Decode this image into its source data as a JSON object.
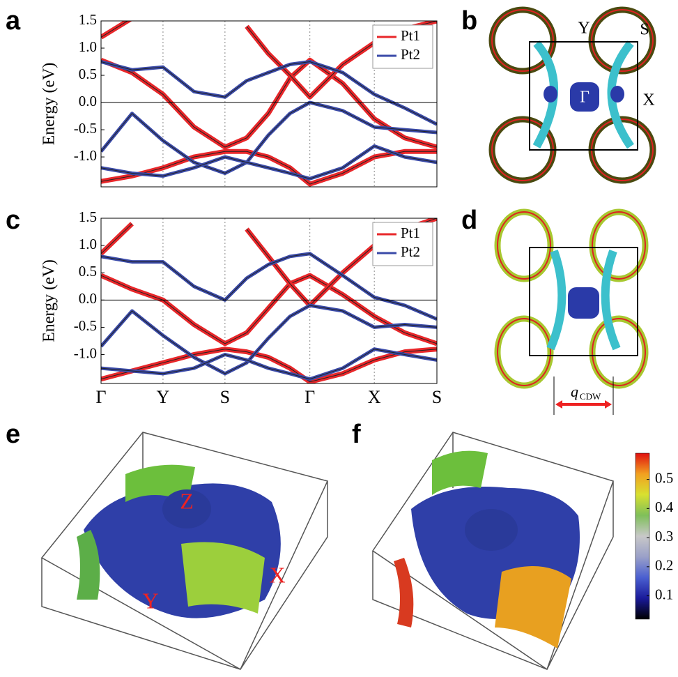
{
  "panel_labels": [
    "a",
    "b",
    "c",
    "d",
    "e",
    "f"
  ],
  "fermi_b": {
    "labels": [
      "Y",
      "S",
      "Γ",
      "X"
    ]
  },
  "fermi_d": {
    "symbol": "q",
    "subscript": "CDW"
  },
  "surface_e": {
    "labels": [
      "Z",
      "X",
      "Y"
    ]
  },
  "chart_data": [
    {
      "type": "line",
      "ylabel": "Energy (eV)",
      "legend": "upper right",
      "x": [
        0,
        0.5,
        1,
        1.5,
        2,
        2.35,
        2.7,
        3.05,
        3.37,
        3.9,
        4.41,
        4.9,
        5.42
      ],
      "xlim": [
        0,
        5.42
      ],
      "xticks": [
        {
          "value": 0,
          "label": null
        },
        {
          "value": 1,
          "label": null
        },
        {
          "value": 2,
          "label": null
        },
        {
          "value": 3.37,
          "label": null
        },
        {
          "value": 4.41,
          "label": null
        },
        {
          "value": 5.42,
          "label": null
        }
      ],
      "ylim": [
        -1.55,
        1.5
      ],
      "yticks": [
        {
          "value": -1,
          "label": "-1.0"
        },
        -0.5,
        {
          "value": 0,
          "label": "0.0"
        },
        0.5,
        {
          "value": 1,
          "label": "1.0"
        },
        1.5
      ],
      "series": [
        {
          "name": "Pt1",
          "color": "#e8272a",
          "values": [
            [
              0.78,
              0.55,
              0.15,
              -0.45,
              -0.82,
              -0.65,
              -0.2,
              0.45,
              0.78,
              0.35,
              -0.3,
              -0.65,
              -0.82
            ],
            [
              -1.45,
              -1.35,
              -1.2,
              -1.0,
              -0.9,
              -0.9,
              -1.0,
              -1.2,
              -1.5,
              -1.3,
              -1.0,
              -0.9,
              -0.9
            ],
            [
              1.2,
              1.55,
              null,
              null,
              null,
              1.4,
              0.9,
              0.5,
              0.1,
              0.7,
              1.1,
              1.35,
              1.5
            ]
          ]
        },
        {
          "name": "Pt2",
          "color": "#3a4aa8",
          "values": [
            [
              -0.9,
              -0.2,
              -0.7,
              -1.1,
              -1.3,
              -1.1,
              -0.6,
              -0.2,
              0.0,
              -0.15,
              -0.45,
              -0.5,
              -0.55
            ],
            [
              0.75,
              0.6,
              0.65,
              0.2,
              0.1,
              0.4,
              0.55,
              0.7,
              0.75,
              0.55,
              0.15,
              -0.1,
              -0.4
            ],
            [
              -1.2,
              -1.3,
              -1.35,
              -1.2,
              -1.0,
              -1.1,
              -1.2,
              -1.3,
              -1.4,
              -1.2,
              -0.8,
              -1.0,
              -1.1
            ]
          ]
        }
      ]
    },
    {
      "type": "line",
      "ylabel": "Energy (eV)",
      "legend": "upper right",
      "x": [
        0,
        0.5,
        1,
        1.5,
        2,
        2.35,
        2.7,
        3.05,
        3.37,
        3.9,
        4.41,
        4.9,
        5.42
      ],
      "xlim": [
        0,
        5.42
      ],
      "xticks": [
        {
          "value": 0,
          "label": "Γ"
        },
        {
          "value": 1,
          "label": "Y"
        },
        {
          "value": 2,
          "label": "S"
        },
        {
          "value": 3.37,
          "label": "Γ"
        },
        {
          "value": 4.41,
          "label": "X"
        },
        {
          "value": 5.42,
          "label": "S"
        }
      ],
      "ylim": [
        -1.53,
        1.5
      ],
      "yticks": [
        {
          "value": -1,
          "label": "-1.0"
        },
        -0.5,
        {
          "value": 0,
          "label": "0.0"
        },
        0.5,
        {
          "value": 1,
          "label": "1.0"
        },
        1.5
      ],
      "series": [
        {
          "name": "Pt1",
          "color": "#e8272a",
          "values": [
            [
              0.45,
              0.2,
              0.0,
              -0.45,
              -0.8,
              -0.6,
              -0.15,
              0.3,
              0.45,
              0.1,
              -0.3,
              -0.6,
              -0.8
            ],
            [
              -1.45,
              -1.3,
              -1.15,
              -1.0,
              -0.9,
              -0.95,
              -1.05,
              -1.25,
              -1.5,
              -1.35,
              -1.1,
              -0.95,
              -0.9
            ],
            [
              0.85,
              1.4,
              null,
              null,
              null,
              1.3,
              0.8,
              0.3,
              -0.1,
              0.5,
              1.0,
              1.3,
              1.5
            ]
          ]
        },
        {
          "name": "Pt2",
          "color": "#3a4aa8",
          "values": [
            [
              -0.85,
              -0.2,
              -0.65,
              -1.05,
              -1.35,
              -1.15,
              -0.7,
              -0.3,
              -0.1,
              -0.2,
              -0.5,
              -0.45,
              -0.5
            ],
            [
              0.8,
              0.7,
              0.7,
              0.25,
              0.0,
              0.4,
              0.65,
              0.8,
              0.85,
              0.45,
              0.05,
              -0.1,
              -0.35
            ],
            [
              -1.25,
              -1.3,
              -1.35,
              -1.25,
              -1.0,
              -1.1,
              -1.25,
              -1.35,
              -1.45,
              -1.25,
              -0.9,
              -1.0,
              -1.1
            ]
          ]
        }
      ]
    },
    {
      "type": "colorbar",
      "ylim": [
        0.02,
        0.59
      ],
      "yticks": [
        0.1,
        0.2,
        0.3,
        0.4,
        0.5
      ],
      "colors": [
        "#000000",
        "#1a1a9a",
        "#4a5fd0",
        "#9aa0c8",
        "#c8c8c8",
        "#7fbf5a",
        "#d8e030",
        "#f2a020",
        "#e01010"
      ]
    }
  ]
}
